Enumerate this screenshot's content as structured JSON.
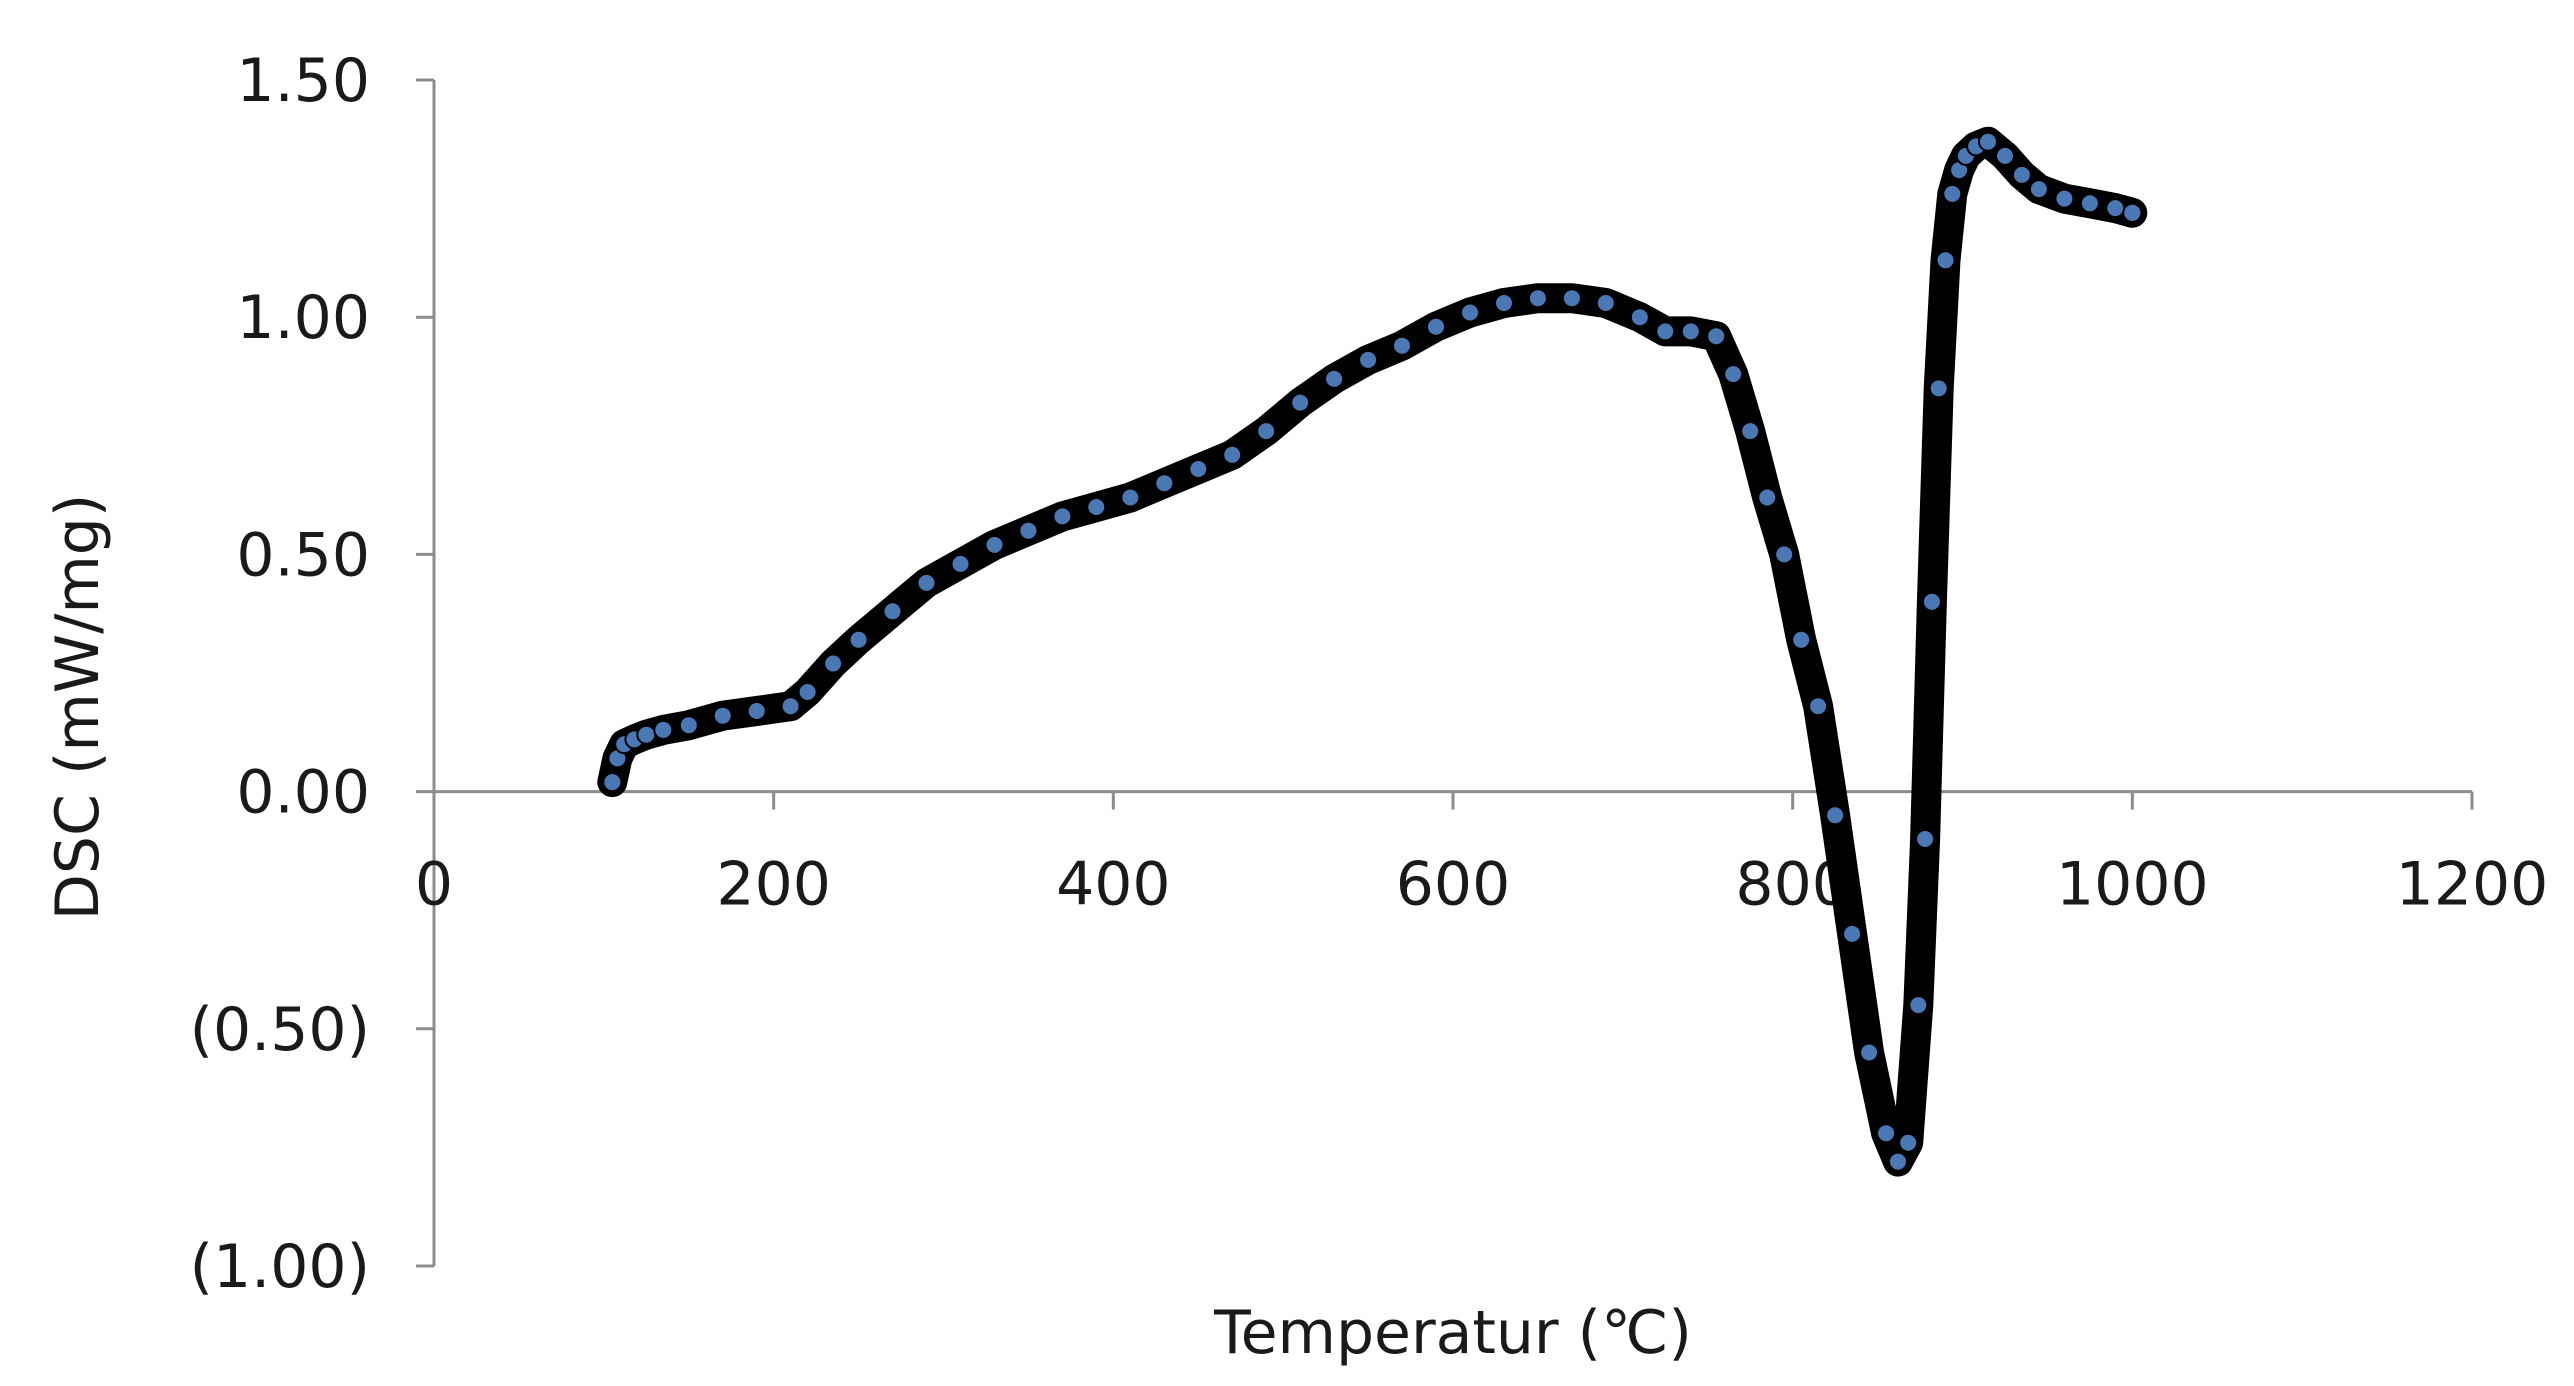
{
  "chart_data": {
    "type": "scatter",
    "title": "",
    "xlabel": "Temperatur (℃)",
    "ylabel": "DSC (mW/mg)",
    "xlim": [
      0,
      1200
    ],
    "ylim": [
      -1.0,
      1.5
    ],
    "x_ticks": [
      0,
      200,
      400,
      600,
      800,
      1000,
      1200
    ],
    "x_tick_labels": [
      "0",
      "200",
      "400",
      "600",
      "800",
      "1000",
      "1200"
    ],
    "y_ticks": [
      1.5,
      1.0,
      0.5,
      0.0,
      -0.5,
      -1.0
    ],
    "y_tick_labels": [
      "1.50",
      "1.00",
      "0.50",
      "0.00",
      "(0.50)",
      "(1.00)"
    ],
    "grid": false,
    "legend": "none",
    "series": [
      {
        "color": "#000000",
        "marker_color": "#4a78b5",
        "x": [
          105,
          108,
          112,
          118,
          125,
          135,
          150,
          170,
          190,
          210,
          220,
          235,
          250,
          270,
          290,
          310,
          330,
          350,
          370,
          390,
          410,
          430,
          450,
          470,
          490,
          510,
          530,
          550,
          570,
          590,
          610,
          630,
          650,
          670,
          690,
          710,
          725,
          740,
          755,
          765,
          775,
          785,
          795,
          805,
          815,
          825,
          835,
          845,
          855,
          862,
          868,
          874,
          878,
          882,
          886,
          890,
          894,
          898,
          902,
          908,
          915,
          925,
          935,
          945,
          960,
          975,
          990,
          1000
        ],
        "y": [
          0.02,
          0.07,
          0.1,
          0.11,
          0.12,
          0.13,
          0.14,
          0.16,
          0.17,
          0.18,
          0.21,
          0.27,
          0.32,
          0.38,
          0.44,
          0.48,
          0.52,
          0.55,
          0.58,
          0.6,
          0.62,
          0.65,
          0.68,
          0.71,
          0.76,
          0.82,
          0.87,
          0.91,
          0.94,
          0.98,
          1.01,
          1.03,
          1.04,
          1.04,
          1.03,
          1.0,
          0.97,
          0.97,
          0.96,
          0.88,
          0.76,
          0.62,
          0.5,
          0.32,
          0.18,
          -0.05,
          -0.3,
          -0.55,
          -0.72,
          -0.78,
          -0.74,
          -0.45,
          -0.1,
          0.4,
          0.85,
          1.12,
          1.26,
          1.31,
          1.34,
          1.36,
          1.37,
          1.34,
          1.3,
          1.27,
          1.25,
          1.24,
          1.23,
          1.22
        ]
      }
    ]
  }
}
